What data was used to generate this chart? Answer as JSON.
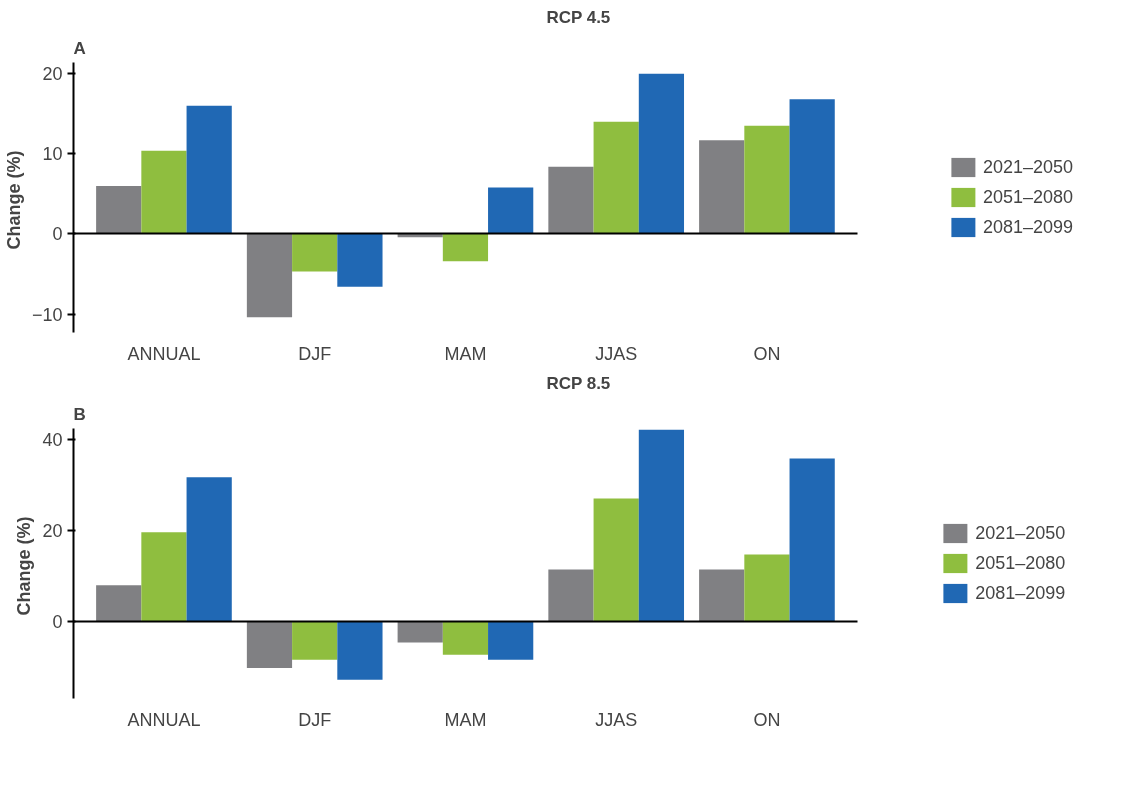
{
  "chart_data": [
    {
      "type": "bar",
      "title": "RCP 4.5",
      "annotations": [
        "A"
      ],
      "ylabel": "Change  (%)",
      "categories": [
        "ANNUAL",
        "DJF",
        "MAM",
        "JJAS",
        "ON"
      ],
      "ylim": [
        -12.3,
        21.4
      ],
      "yticks": [
        -10,
        0,
        10,
        20
      ],
      "legend": "right",
      "series": [
        {
          "name": "2021–2050",
          "color": "#808083",
          "values": [
            6.0,
            -10.4,
            -0.4,
            8.4,
            11.7
          ]
        },
        {
          "name": "2051–2080",
          "color": "#8fbe3f",
          "values": [
            10.4,
            -4.7,
            -3.4,
            14.0,
            13.5
          ]
        },
        {
          "name": "2081–2099",
          "color": "#2068b4",
          "values": [
            16.0,
            -6.6,
            5.8,
            20.0,
            16.8
          ]
        }
      ]
    },
    {
      "type": "bar",
      "title": "RCP 8.5",
      "annotations": [
        "B"
      ],
      "ylabel": "Change  (%)",
      "categories": [
        "ANNUAL",
        "DJF",
        "MAM",
        "JJAS",
        "ON"
      ],
      "ylim": [
        -16.9,
        42.5
      ],
      "yticks": [
        0,
        20,
        40
      ],
      "legend": "right",
      "series": [
        {
          "name": "2021–2050",
          "color": "#808083",
          "values": [
            8.0,
            -10.2,
            -4.6,
            11.5,
            11.5
          ]
        },
        {
          "name": "2051–2080",
          "color": "#8fbe3f",
          "values": [
            19.7,
            -8.4,
            -7.3,
            27.1,
            14.8
          ]
        },
        {
          "name": "2081–2099",
          "color": "#2068b4",
          "values": [
            31.8,
            -12.8,
            -8.4,
            42.2,
            35.9
          ]
        }
      ]
    }
  ]
}
